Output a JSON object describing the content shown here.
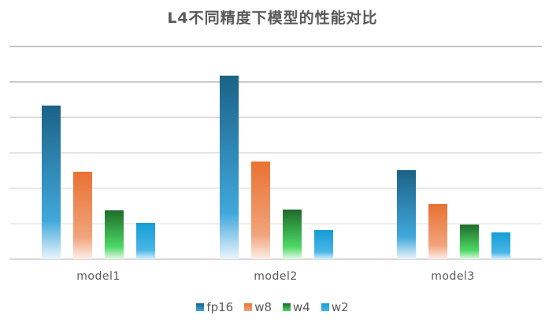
{
  "title": "L4不同精度下模型的性能对比",
  "legend": [
    {
      "label": "fp16",
      "top": "#1b6286",
      "mid": "#41a8dc",
      "bottom": "#eaf5fc"
    },
    {
      "label": "w8",
      "top": "#e97132",
      "mid": "#f1a47c",
      "bottom": "#fcefe9"
    },
    {
      "label": "w4",
      "top": "#1e6b2a",
      "mid": "#4cd964",
      "bottom": "#e6f9e8"
    },
    {
      "label": "w2",
      "top": "#149dd6",
      "mid": "#4ab6e6",
      "bottom": "#d7efff"
    }
  ],
  "gridline_colors": [
    "#c3c3c3",
    "#cbcbcb",
    "#d9d9d9",
    "#e4e4e4",
    "#ebebeb",
    "#efefef"
  ],
  "chart_data": {
    "type": "bar",
    "title": "L4不同精度下模型的性能对比",
    "xlabel": "",
    "ylabel": "",
    "categories": [
      "model1",
      "model2",
      "model3"
    ],
    "series": [
      {
        "name": "fp16",
        "values": [
          4.33,
          5.18,
          2.51
        ]
      },
      {
        "name": "w8",
        "values": [
          2.47,
          2.76,
          1.56
        ]
      },
      {
        "name": "w4",
        "values": [
          1.38,
          1.4,
          0.98
        ]
      },
      {
        "name": "w2",
        "values": [
          1.02,
          0.82,
          0.76
        ]
      }
    ],
    "ylim": [
      0,
      6
    ],
    "y_tick_labels_visible": false,
    "grid": true,
    "legend_position": "bottom"
  }
}
